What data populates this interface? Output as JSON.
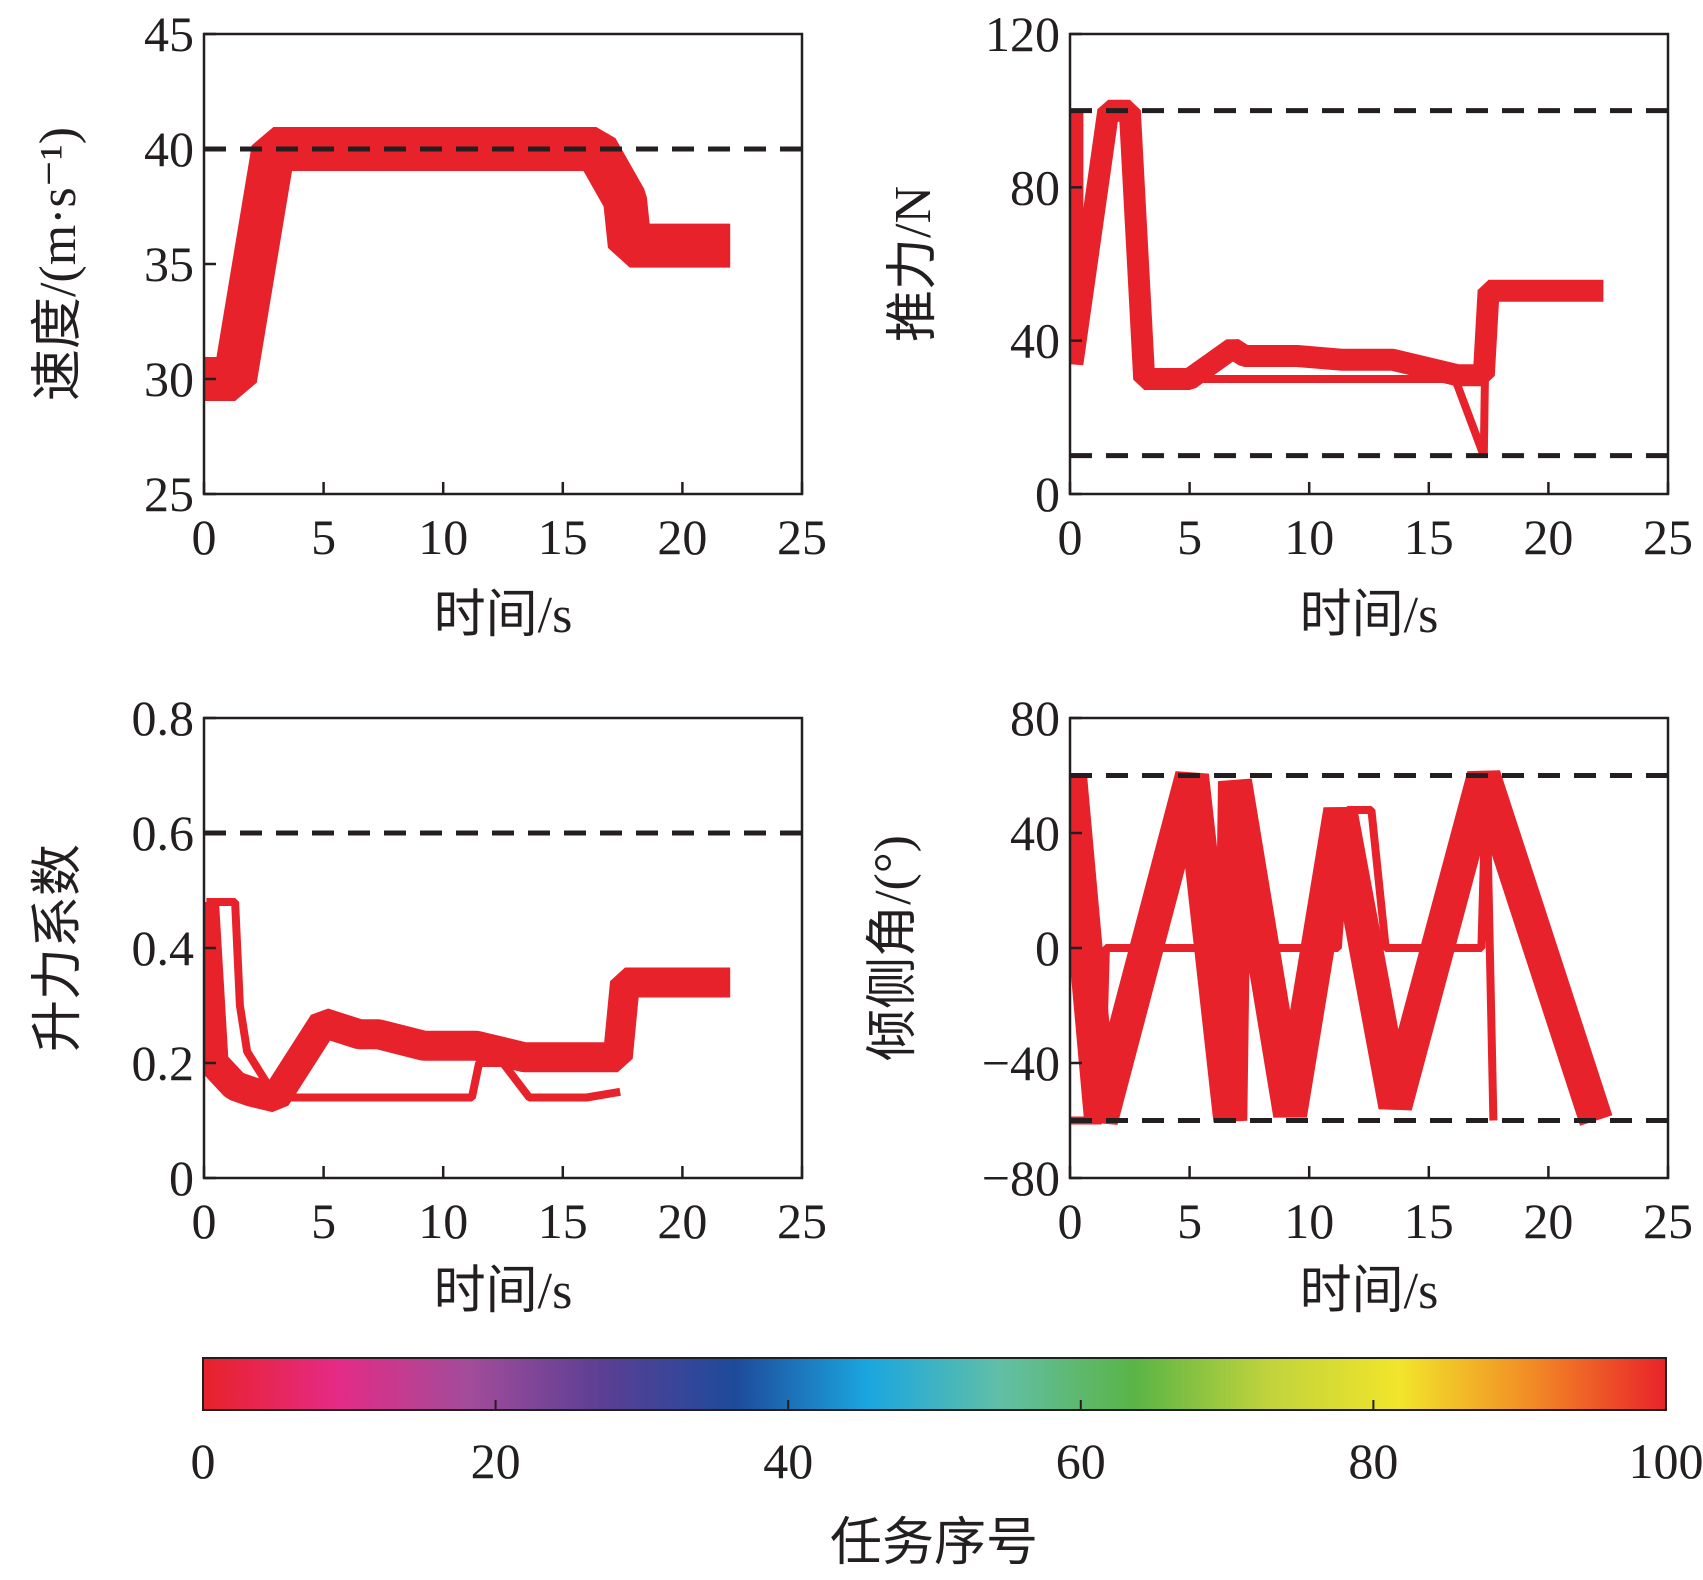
{
  "chart_data": [
    {
      "id": "speed",
      "type": "line",
      "ylabel": "速度/(m·s⁻¹)",
      "xlabel": "时间/s",
      "xlim": [
        0,
        25
      ],
      "ylim": [
        25,
        45
      ],
      "xticks": [
        "0",
        "5",
        "10",
        "15",
        "20",
        "25"
      ],
      "yticks": [
        "25",
        "30",
        "35",
        "40",
        "45"
      ],
      "limits": [
        40
      ],
      "bands": [
        {
          "task": 0,
          "x": [
            0,
            0.6,
            1.3,
            2.9,
            16.4,
            17.6,
            17.8,
            22.0
          ],
          "y": [
            30,
            30,
            30,
            40,
            40,
            37.8,
            35.8,
            35.8
          ],
          "w": 44
        },
        {
          "task": 100,
          "x": [
            0,
            0.6,
            1.4,
            2.9,
            16.2,
            17.4,
            17.5
          ],
          "y": [
            30,
            30,
            30,
            40,
            40,
            38,
            35.8
          ],
          "w": 8
        }
      ]
    },
    {
      "id": "thrust",
      "type": "line",
      "ylabel": "推力/N",
      "xlabel": "时间/s",
      "xlim": [
        0,
        25
      ],
      "ylim": [
        0,
        120
      ],
      "xticks": [
        "0",
        "5",
        "10",
        "15",
        "20",
        "25"
      ],
      "yticks": [
        "0",
        "40",
        "80",
        "120"
      ],
      "limits": [
        10,
        100
      ],
      "bands": [
        {
          "task": 0,
          "x": [
            0.1,
            0.1,
            1.6,
            1.7,
            2.5,
            3.1,
            5.0,
            6.8,
            7.3,
            9.5,
            11.4,
            13.5,
            16.2,
            17.3,
            17.5,
            22.3
          ],
          "y": [
            100,
            34,
            100,
            100,
            100,
            30,
            30,
            38,
            36,
            36,
            35,
            35,
            31,
            31,
            53,
            53
          ],
          "w": 22
        },
        {
          "task": 100,
          "x": [
            0.0,
            1.4,
            2.6,
            3.0,
            16.0,
            16.1,
            17.3,
            17.4
          ],
          "y": [
            34,
            100,
            100,
            30,
            30,
            30,
            10,
            53
          ],
          "w": 8
        }
      ]
    },
    {
      "id": "lift",
      "type": "line",
      "ylabel": "升力系数",
      "xlabel": "时间/s",
      "xlim": [
        0,
        25
      ],
      "ylim": [
        0,
        0.8
      ],
      "xticks": [
        "0",
        "5",
        "10",
        "15",
        "20",
        "25"
      ],
      "yticks": [
        "0",
        "0.2",
        "0.4",
        "0.6",
        "0.8"
      ],
      "limits": [
        0.6
      ],
      "bands": [
        {
          "task": 0,
          "x": [
            0,
            0.4,
            1.3,
            2.0,
            3.0,
            5.0,
            6.5,
            7.3,
            9.2,
            11.4,
            13.4,
            17.3,
            17.6,
            22.0
          ],
          "y": [
            0.48,
            0.2,
            0.16,
            0.15,
            0.14,
            0.27,
            0.25,
            0.25,
            0.23,
            0.23,
            0.21,
            0.21,
            0.34,
            0.34
          ],
          "w": 30
        },
        {
          "task": 100,
          "x": [
            0.1,
            1.3,
            1.5,
            1.8,
            3.0,
            11.2,
            11.5,
            12.5,
            13.6,
            16.0,
            17.4
          ],
          "y": [
            0.48,
            0.48,
            0.3,
            0.22,
            0.14,
            0.14,
            0.2,
            0.2,
            0.14,
            0.14,
            0.15
          ],
          "w": 8
        }
      ]
    },
    {
      "id": "bank",
      "type": "line",
      "ylabel": "倾侧角/(°)",
      "xlabel": "时间/s",
      "xlim": [
        0,
        25
      ],
      "ylim": [
        -80,
        80
      ],
      "xticks": [
        "0",
        "5",
        "10",
        "15",
        "20",
        "25"
      ],
      "yticks": [
        "-80",
        "-40",
        "0",
        "40",
        "80"
      ],
      "limits": [
        -60,
        60
      ],
      "bands": [
        {
          "task": 0,
          "x": [
            0.0,
            1.3,
            5.1,
            6.7,
            6.9,
            9.2,
            11.3,
            13.6,
            17.3,
            22.0
          ],
          "y": [
            60,
            -60,
            60,
            -60,
            58,
            -58,
            48,
            -55,
            60,
            -60
          ],
          "w": 34
        },
        {
          "task": 100,
          "x": [
            0.0,
            1.3,
            1.5,
            11.2,
            11.6,
            12.6,
            13.2,
            17.2,
            17.4,
            17.7
          ],
          "y": [
            -60,
            -60,
            0,
            0,
            48,
            48,
            0,
            0,
            60,
            -60
          ],
          "w": 8
        }
      ]
    }
  ],
  "colorbar": {
    "label": "任务序号",
    "range": [
      0,
      100
    ],
    "ticks": [
      "0",
      "20",
      "40",
      "60",
      "80",
      "100"
    ],
    "stops": [
      "#e8222a",
      "#e52a85",
      "#a24c9a",
      "#5b3f94",
      "#1e4a9b",
      "#1aa6df",
      "#62bfa6",
      "#5ab446",
      "#c0d33c",
      "#f2e52b",
      "#f28a25",
      "#e8222a"
    ]
  }
}
